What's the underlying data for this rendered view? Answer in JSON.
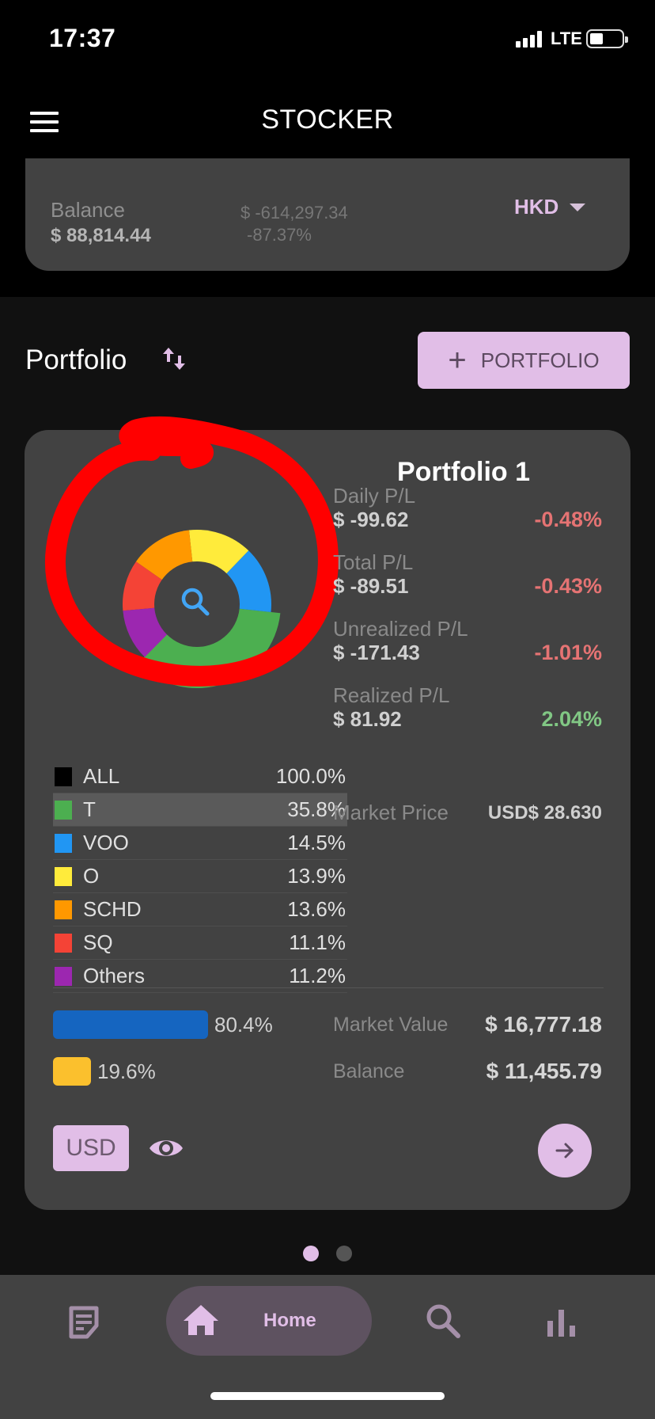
{
  "status_bar": {
    "time": "17:37",
    "network": "LTE"
  },
  "app_bar": {
    "title": "STOCKER"
  },
  "balance": {
    "label": "Balance",
    "value": "$ 88,814.44",
    "change": "$ -614,297.34",
    "change_pct": "-87.37%",
    "currency": "HKD"
  },
  "portfolio_section": {
    "heading": "Portfolio",
    "add_button": "PORTFOLIO"
  },
  "card": {
    "title": "Portfolio 1",
    "donut": [
      {
        "ticker": "T",
        "fraction": 0.358,
        "color": "#4caf50"
      },
      {
        "ticker": "VOO",
        "fraction": 0.145,
        "color": "#2196f3"
      },
      {
        "ticker": "O",
        "fraction": 0.139,
        "color": "#ffeb3b"
      },
      {
        "ticker": "SCHD",
        "fraction": 0.136,
        "color": "#ff9800"
      },
      {
        "ticker": "SQ",
        "fraction": 0.111,
        "color": "#f44336"
      },
      {
        "ticker": "Others",
        "fraction": 0.112,
        "color": "#9c27b0"
      }
    ],
    "legend": [
      {
        "ticker": "ALL",
        "pct": "100.0%",
        "color": "#000000"
      },
      {
        "ticker": "T",
        "pct": "35.8%",
        "color": "#4caf50"
      },
      {
        "ticker": "VOO",
        "pct": "14.5%",
        "color": "#2196f3"
      },
      {
        "ticker": "O",
        "pct": "13.9%",
        "color": "#ffeb3b"
      },
      {
        "ticker": "SCHD",
        "pct": "13.6%",
        "color": "#ff9800"
      },
      {
        "ticker": "SQ",
        "pct": "11.1%",
        "color": "#f44336"
      },
      {
        "ticker": "Others",
        "pct": "11.2%",
        "color": "#9c27b0"
      }
    ],
    "selected_ticker": "T",
    "daily_pl": {
      "label": "Daily P/L",
      "value": "$ -99.62",
      "pct": "-0.48%"
    },
    "total_pl": {
      "label": "Total P/L",
      "value": "$ -89.51",
      "pct": "-0.43%"
    },
    "unrealized_pl": {
      "label": "Unrealized P/L",
      "value": "$ -171.43",
      "pct": "-1.01%"
    },
    "realized_pl": {
      "label": "Realized P/L",
      "value": "$ 81.92",
      "pct": "2.04%"
    },
    "market_price": {
      "label": "Market Price",
      "value": "USD$ 28.630"
    },
    "allocation": {
      "invested_pct": "80.4%",
      "invested_fraction": 0.804,
      "cash_pct": "19.6%",
      "cash_fraction": 0.196
    },
    "market_value": {
      "label": "Market Value",
      "value": "$ 16,777.18"
    },
    "card_balance": {
      "label": "Balance",
      "value": "$ 11,455.79"
    },
    "currency_chip": "USD"
  },
  "pager": {
    "pages": 2,
    "active": 0
  },
  "bottom_nav": {
    "home_label": "Home"
  },
  "colors": {
    "accent": "#e1bee7",
    "negative": "#e57373",
    "positive": "#81c784",
    "annotation": "#ff0000"
  }
}
